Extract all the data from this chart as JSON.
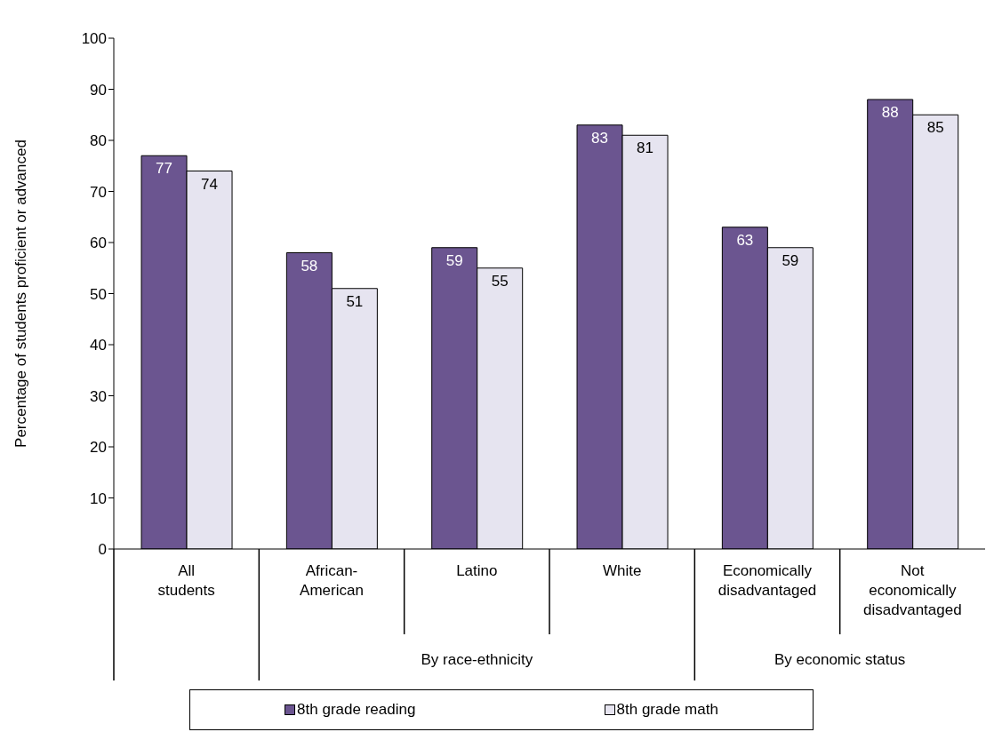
{
  "chart_data": {
    "type": "bar",
    "ylabel": "Percentage of students proficient or advanced",
    "categories": [
      "All students",
      "African-American",
      "Latino",
      "White",
      "Economically disadvantaged",
      "Not economically disadvantaged"
    ],
    "series": [
      {
        "name": "8th grade reading",
        "color": "#6b5590",
        "values": [
          77,
          58,
          59,
          83,
          63,
          88
        ]
      },
      {
        "name": "8th grade math",
        "color": "#e6e4f0",
        "values": [
          74,
          51,
          55,
          81,
          59,
          85
        ]
      }
    ],
    "ylim": [
      0,
      100
    ],
    "yticks": [
      0,
      10,
      20,
      30,
      40,
      50,
      60,
      70,
      80,
      90,
      100
    ],
    "annotations": [
      "By race-ethnicity",
      "By economic status"
    ],
    "data_labels": true,
    "grid": false,
    "legend": "bottom"
  }
}
